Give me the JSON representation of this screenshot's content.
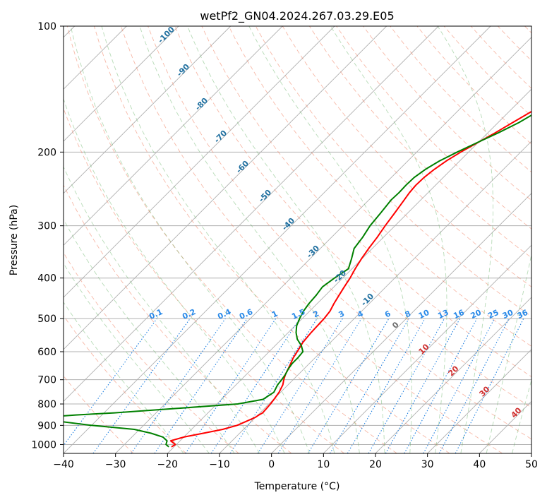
{
  "chart_data": {
    "type": "line",
    "title": "wetPf2_GN04.2024.267.03.29.E05",
    "xlabel": "Temperature (°C)",
    "ylabel": "Pressure (hPa)",
    "xlim": [
      -40,
      50
    ],
    "ylim": [
      1050,
      100
    ],
    "y_scale": "log",
    "grid": true,
    "x_ticks": [
      "−40",
      "−30",
      "−20",
      "−10",
      "0",
      "10",
      "20",
      "30",
      "40",
      "50"
    ],
    "y_ticks": [
      "100",
      "200",
      "300",
      "400",
      "500",
      "600",
      "700",
      "800",
      "900",
      "1000"
    ],
    "series": [
      {
        "color": "#ff0000",
        "pressure": [
          1013,
          1000,
          980,
          960,
          940,
          920,
          900,
          880,
          860,
          850,
          840,
          820,
          800,
          780,
          750,
          720,
          700,
          680,
          650,
          620,
          600,
          570,
          540,
          520,
          500,
          480,
          460,
          440,
          420,
          400,
          380,
          360,
          340,
          320,
          300,
          280,
          260,
          250,
          240,
          230,
          220,
          210,
          200,
          190,
          180,
          170,
          160,
          150,
          140,
          130,
          120,
          110,
          100
        ],
        "temperature": [
          -20.5,
          -20.2,
          -21.8,
          -20,
          -17,
          -14,
          -12,
          -11,
          -10,
          -9.8,
          -9.5,
          -9.6,
          -9.7,
          -9.9,
          -10.3,
          -11,
          -11.8,
          -12.5,
          -13.3,
          -14.2,
          -14.6,
          -15.3,
          -15.6,
          -15.7,
          -15.8,
          -16.1,
          -16.8,
          -17.4,
          -18,
          -18.6,
          -19.4,
          -20.1,
          -20.7,
          -21.2,
          -21.9,
          -22.5,
          -23.2,
          -23.6,
          -23.8,
          -23.7,
          -23.3,
          -22.6,
          -21.5,
          -20.1,
          -18.6,
          -17.2,
          -15.7,
          -14,
          -12,
          -9.5,
          -6.8,
          -4.2,
          -1.8
        ]
      },
      {
        "color": "#008000",
        "pressure": [
          1013,
          1000,
          980,
          960,
          940,
          920,
          900,
          880,
          860,
          850,
          840,
          820,
          800,
          780,
          750,
          720,
          700,
          680,
          660,
          640,
          620,
          600,
          580,
          560,
          540,
          520,
          500,
          480,
          460,
          440,
          420,
          400,
          380,
          360,
          340,
          320,
          300,
          280,
          260,
          250,
          240,
          230,
          220,
          210,
          200,
          190,
          180,
          170,
          160,
          150,
          140,
          130,
          120,
          110,
          100
        ],
        "temperature": [
          -21,
          -22,
          -22.5,
          -24,
          -27,
          -31,
          -40,
          -47,
          -50,
          -45,
          -38,
          -27,
          -16,
          -12,
          -11.3,
          -12,
          -12.2,
          -12.5,
          -13,
          -13.3,
          -13.3,
          -13.5,
          -15,
          -17,
          -18.5,
          -19.7,
          -20.5,
          -21.2,
          -21.6,
          -21.8,
          -22.2,
          -21.6,
          -20.7,
          -22,
          -23.5,
          -24,
          -24.8,
          -25.2,
          -25.7,
          -25.6,
          -25.7,
          -25.6,
          -25,
          -23.9,
          -22.2,
          -20.2,
          -18,
          -16,
          -14.5,
          -13.3,
          -12.1,
          -10.8,
          -8.8,
          -6.8,
          -5
        ]
      }
    ],
    "annotations": {
      "dry_adiabats": [
        "-100",
        "-90",
        "-80",
        "-70",
        "-60",
        "-50",
        "-40",
        "-30",
        "-20",
        "-10",
        "0",
        "10",
        "20",
        "30",
        "40"
      ],
      "mixing_ratios": [
        "0.1",
        "0.2",
        "0.4",
        "0.6",
        "1",
        "1.5",
        "2",
        "3",
        "4",
        "6",
        "8",
        "10",
        "13",
        "16",
        "20",
        "25",
        "30",
        "36"
      ]
    }
  }
}
